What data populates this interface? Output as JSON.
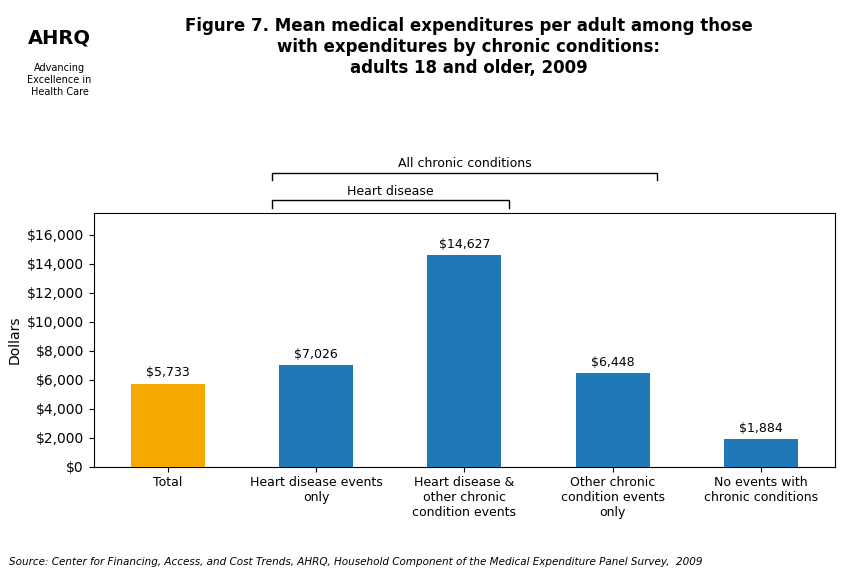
{
  "chart_data": {
    "type": "bar",
    "title": "Figure 7. Mean medical expenditures per adult among those\nwith expenditures by chronic conditions:\nadults 18 and older, 2009",
    "ylabel": "Dollars",
    "categories": [
      "Total",
      "Heart disease events\nonly",
      "Heart disease &\nother chronic\ncondition events",
      "Other chronic\ncondition events\nonly",
      "No events with\nchronic conditions"
    ],
    "values": [
      5733,
      7026,
      14627,
      6448,
      1884
    ],
    "value_labels": [
      "$5,733",
      "$7,026",
      "$14,627",
      "$6,448",
      "$1,884"
    ],
    "data_labels": true,
    "colors": [
      "#F5A800",
      "#2178B8",
      "#2178B8",
      "#2178B8",
      "#2178B8"
    ],
    "ylim": [
      0,
      17500
    ],
    "yticks": [
      {
        "value": 0,
        "label": "$0"
      },
      {
        "value": 2000,
        "label": "$2,000"
      },
      {
        "value": 4000,
        "label": "$4,000"
      },
      {
        "value": 6000,
        "label": "$6,000"
      },
      {
        "value": 8000,
        "label": "$8,000"
      },
      {
        "value": 10000,
        "label": "$10,000"
      },
      {
        "value": 12000,
        "label": "$12,000"
      },
      {
        "value": 14000,
        "label": "$14,000"
      },
      {
        "value": 16000,
        "label": "$16,000"
      }
    ],
    "grid": false,
    "brackets": [
      {
        "label": "Heart disease",
        "first": 1,
        "last": 2
      },
      {
        "label": "All chronic conditions",
        "first": 1,
        "last": 3
      }
    ],
    "logo": [
      "AHRQ",
      "Advancing\nExcellence in\nHealth Care"
    ],
    "source": "Source: Center for Financing, Access, and Cost Trends, AHRQ, Household Component of the Medical Expenditure Panel Survey,  2009"
  }
}
